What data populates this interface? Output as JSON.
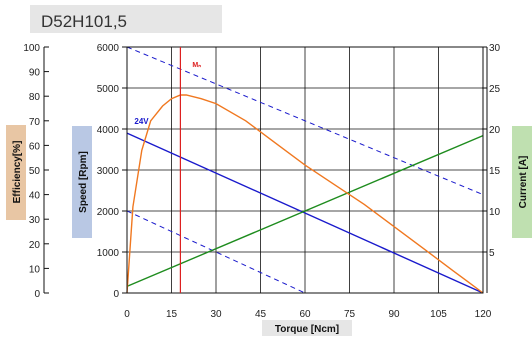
{
  "title": "D52H101,5",
  "chart_data": {
    "type": "line",
    "title": "D52H101,5",
    "xlabel": "Torque [Ncm]",
    "xlim": [
      0,
      120
    ],
    "x_ticks": [
      "0",
      "15",
      "30",
      "45",
      "60",
      "75",
      "90",
      "105",
      "120"
    ],
    "axes": {
      "speed": {
        "label": "Speed [Rpm]",
        "range": [
          0,
          6000
        ],
        "ticks": [
          "0",
          "1000",
          "2000",
          "3000",
          "4000",
          "5000",
          "6000"
        ]
      },
      "efficiency": {
        "label": "Efficiency[%]",
        "range": [
          0,
          100
        ],
        "ticks": [
          "0",
          "10",
          "20",
          "30",
          "40",
          "50",
          "60",
          "70",
          "80",
          "90",
          "100"
        ]
      },
      "current": {
        "label": "Current [A]",
        "range": [
          0,
          30
        ],
        "ticks": [
          "5",
          "10",
          "15",
          "20",
          "25",
          "30"
        ]
      }
    },
    "annotations": {
      "voltage": "24V",
      "rated_torque": "Mₙ",
      "rated_torque_x": 18
    },
    "grid": true,
    "series": [
      {
        "axis": "speed",
        "style": "solid",
        "color": "#1a1acc",
        "x": [
          0,
          120
        ],
        "y": [
          3900,
          0
        ]
      },
      {
        "axis": "speed",
        "style": "dashed",
        "color": "#1a1acc",
        "x": [
          0,
          120
        ],
        "y": [
          6000,
          2400
        ]
      },
      {
        "axis": "speed",
        "style": "dashed",
        "color": "#1a1acc",
        "x": [
          0,
          60
        ],
        "y": [
          2000,
          0
        ]
      },
      {
        "axis": "current",
        "style": "solid",
        "color": "#1e8c1e",
        "x": [
          0,
          120
        ],
        "y": [
          0.8,
          19.2
        ]
      },
      {
        "axis": "efficiency",
        "style": "solid",
        "color": "#f07820",
        "x": [
          0,
          2,
          5,
          8,
          12,
          15,
          18,
          20,
          25,
          30,
          40,
          50,
          60,
          70,
          80,
          90,
          100,
          110,
          115,
          120
        ],
        "y": [
          0,
          35,
          58,
          70,
          76,
          79,
          80.5,
          80.5,
          79,
          77,
          70,
          61,
          52,
          44,
          36,
          27,
          18,
          9,
          4.5,
          0
        ]
      }
    ]
  },
  "colors": {
    "efficiency_box": "#e8c6a4",
    "speed_box": "#b9c8e4",
    "current_box": "#bfe0b0",
    "title_box": "#e6e6e6",
    "rated_line": "#dd2020"
  }
}
